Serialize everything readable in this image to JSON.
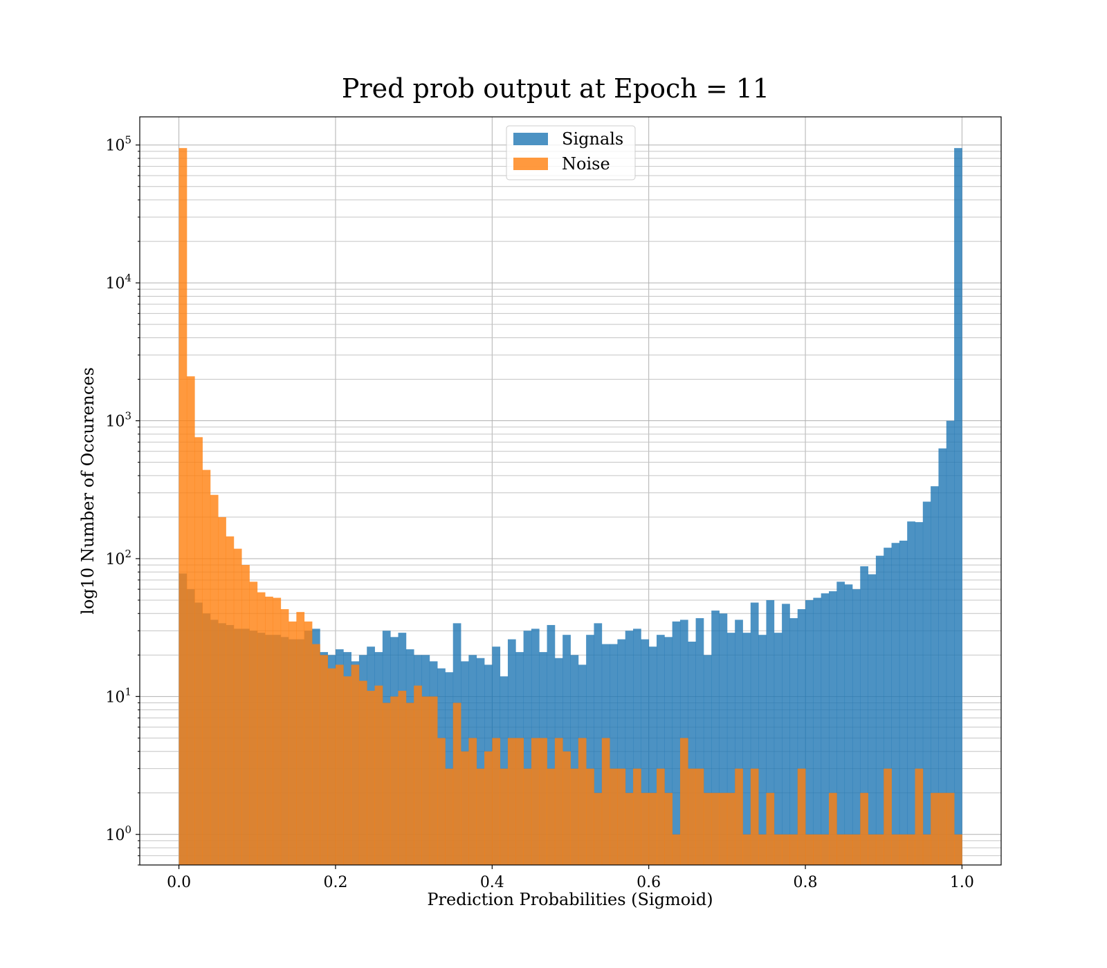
{
  "chart_data": {
    "type": "bar",
    "title": "Pred prob output at Epoch = 11",
    "xlabel": "Prediction Probabilities (Sigmoid)",
    "ylabel": "log10 Number of Occurences",
    "xlim": [
      -0.05,
      1.05
    ],
    "ylim": [
      0.6,
      160000
    ],
    "y_scale": "log",
    "xticks": [
      0.0,
      0.2,
      0.4,
      0.6,
      0.8,
      1.0
    ],
    "xtick_labels": [
      "0.0",
      "0.2",
      "0.4",
      "0.6",
      "0.8",
      "1.0"
    ],
    "yticks": [
      1,
      10,
      100,
      1000,
      10000,
      100000
    ],
    "ytick_labels": [
      {
        "base": "10",
        "exp": "0"
      },
      {
        "base": "10",
        "exp": "1"
      },
      {
        "base": "10",
        "exp": "2"
      },
      {
        "base": "10",
        "exp": "3"
      },
      {
        "base": "10",
        "exp": "4"
      },
      {
        "base": "10",
        "exp": "5"
      }
    ],
    "grid": true,
    "legend_position": "upper center",
    "bin_edges_range": [
      0.0,
      1.0
    ],
    "bin_count": 100,
    "series": [
      {
        "name": "Signals",
        "color": "#1f77b4",
        "opacity": 0.8,
        "values": [
          78,
          60,
          48,
          40,
          36,
          34,
          33,
          31,
          31,
          30,
          29,
          28,
          28,
          27,
          26,
          26,
          30,
          31,
          21,
          20,
          22,
          21,
          18,
          20,
          23,
          21,
          30,
          27,
          29,
          22,
          20,
          20,
          18,
          16,
          15,
          34,
          18,
          20,
          19,
          17,
          23,
          14,
          26,
          21,
          30,
          31,
          21,
          33,
          19,
          28,
          20,
          17,
          28,
          34,
          24,
          24,
          26,
          30,
          31,
          26,
          23,
          28,
          27,
          35,
          36,
          25,
          37,
          20,
          42,
          40,
          29,
          36,
          29,
          48,
          28,
          50,
          29,
          47,
          37,
          43,
          50,
          52,
          56,
          58,
          68,
          65,
          60,
          88,
          77,
          105,
          120,
          130,
          135,
          186,
          184,
          259,
          335,
          630,
          1000,
          95000
        ]
      },
      {
        "name": "Noise",
        "color": "#ff7f0e",
        "opacity": 0.8,
        "values": [
          95000,
          2100,
          760,
          440,
          290,
          200,
          145,
          118,
          90,
          68,
          57,
          53,
          52,
          43,
          35,
          41,
          35,
          24,
          20,
          16,
          17,
          14,
          17,
          13,
          11,
          12,
          9,
          10,
          11,
          9,
          12,
          10,
          10,
          5,
          3,
          9,
          4,
          5,
          3,
          4,
          5,
          3,
          5,
          5,
          3,
          5,
          5,
          3,
          5,
          4,
          3,
          5,
          3,
          2,
          5,
          3,
          3,
          2,
          3,
          2,
          2,
          3,
          2,
          1,
          5,
          3,
          3,
          2,
          2,
          2,
          2,
          3,
          1,
          3,
          1,
          2,
          1,
          1,
          1,
          3,
          1,
          1,
          1,
          2,
          1,
          1,
          1,
          2,
          1,
          1,
          3,
          1,
          1,
          1,
          3,
          1,
          2,
          2,
          2,
          1
        ]
      }
    ]
  }
}
